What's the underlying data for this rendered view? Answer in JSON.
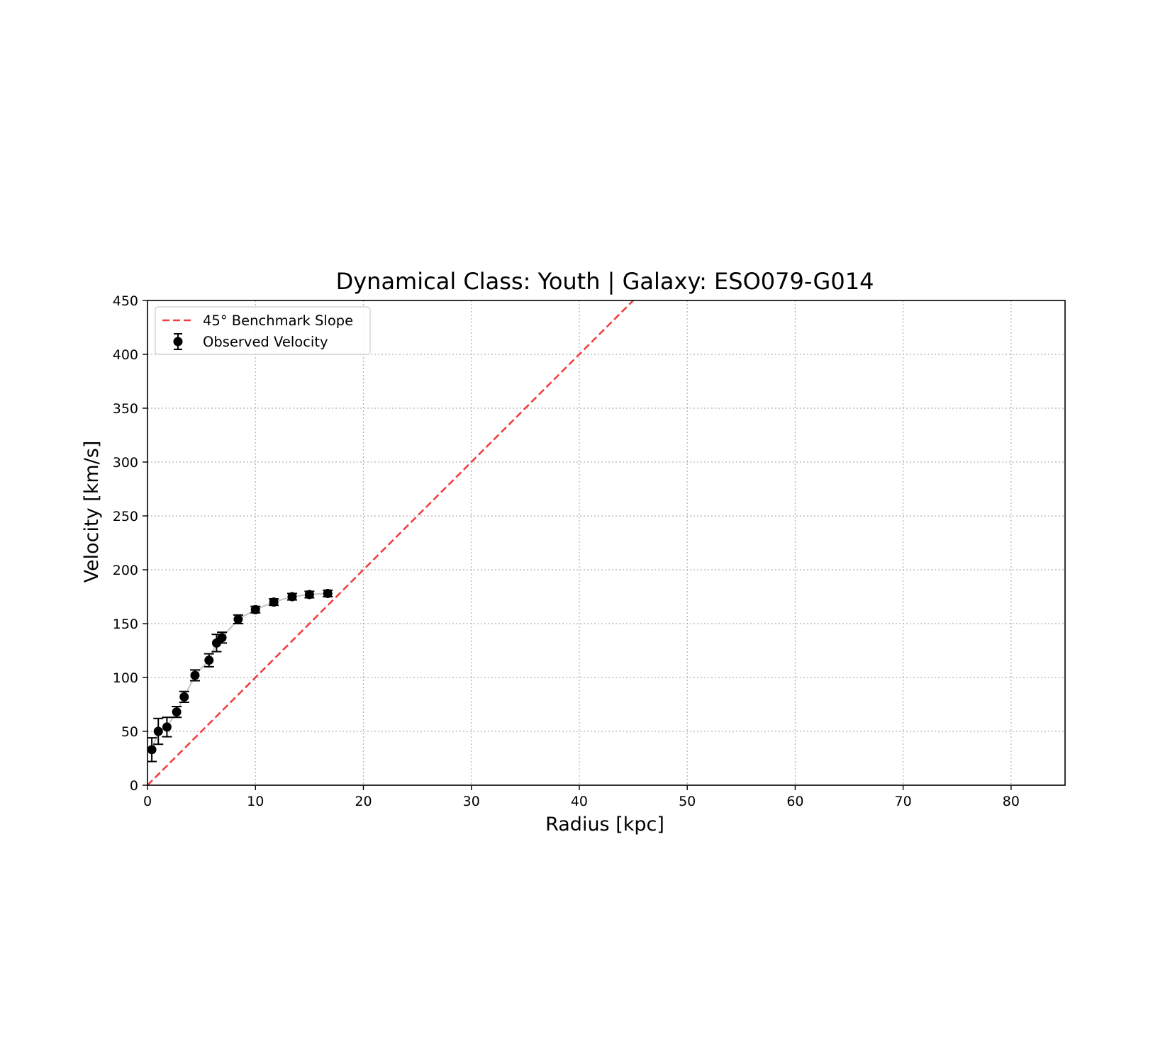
{
  "chart_data": {
    "type": "scatter",
    "title": "Dynamical Class: Youth | Galaxy: ESO079-G014",
    "xlabel": "Radius [kpc]",
    "ylabel": "Velocity [km/s]",
    "xlim": [
      0,
      85
    ],
    "ylim": [
      0,
      450
    ],
    "xticks": [
      "0",
      "10",
      "20",
      "30",
      "40",
      "50",
      "60",
      "70",
      "80"
    ],
    "yticks": [
      "0",
      "50",
      "100",
      "150",
      "200",
      "250",
      "300",
      "350",
      "400",
      "450"
    ],
    "grid": true,
    "legend_position": "upper-left",
    "series": [
      {
        "name": "Observed Velocity",
        "kind": "errorbar",
        "color": "#000000",
        "line_color": "#c8c8c8",
        "x": [
          0.4,
          1.0,
          1.8,
          2.7,
          3.4,
          4.4,
          5.7,
          6.4,
          6.9,
          8.4,
          10.0,
          11.7,
          13.4,
          15.0,
          16.7
        ],
        "y": [
          33,
          50,
          54,
          68,
          82,
          102,
          116,
          132,
          137,
          154,
          163,
          170,
          175,
          177,
          178
        ],
        "yerr": [
          11,
          12,
          9,
          5,
          5,
          5,
          6,
          8,
          5,
          4,
          3,
          3,
          3,
          3,
          3
        ]
      },
      {
        "name": "45° Benchmark Slope",
        "kind": "line",
        "style": "dashed",
        "color": "#f0413e",
        "x": [
          0,
          45
        ],
        "y": [
          0,
          450
        ]
      }
    ]
  }
}
